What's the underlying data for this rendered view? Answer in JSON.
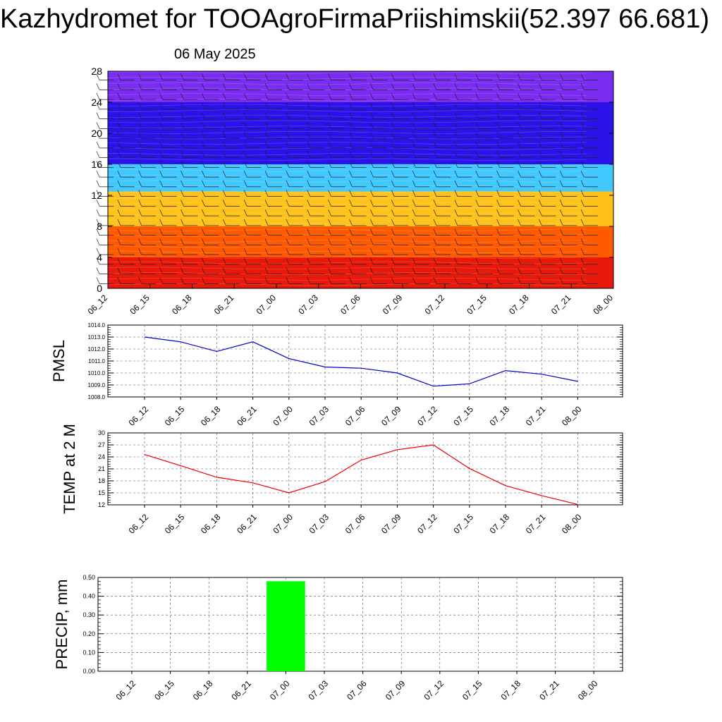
{
  "page": {
    "title": "Kazhydromet for TOOAgroFirmaPriishimskii(52.397 66.681)",
    "subtitle": "06 May 2025"
  },
  "chart_data": [
    {
      "type": "heatmap",
      "title": "",
      "xlabel": "",
      "ylabel": "",
      "x": [
        "06_12",
        "06_15",
        "06_18",
        "06_21",
        "07_00",
        "07_03",
        "07_06",
        "07_09",
        "07_12",
        "07_15",
        "07_18",
        "07_21",
        "08_00"
      ],
      "yticks": [
        0,
        4,
        8,
        12,
        16,
        20,
        24,
        28
      ],
      "ylim": [
        0,
        28
      ],
      "colorbands": [
        {
          "y": [
            0,
            4
          ],
          "color": "#e8180a"
        },
        {
          "y": [
            4,
            8
          ],
          "color": "#ff5a00"
        },
        {
          "y": [
            8,
            12.5
          ],
          "color": "#ffc21a"
        },
        {
          "y": [
            12.5,
            16
          ],
          "color": "#40c8ff"
        },
        {
          "y": [
            16,
            24
          ],
          "color": "#2a12e8"
        },
        {
          "y": [
            24,
            28
          ],
          "color": "#7a2cf0"
        }
      ],
      "wind_barbs": true
    },
    {
      "type": "line",
      "ylabel": "PMSL",
      "x": [
        "06_12",
        "06_15",
        "06_18",
        "06_21",
        "07_00",
        "07_03",
        "07_06",
        "07_09",
        "07_12",
        "07_15",
        "07_18",
        "07_21",
        "08_00"
      ],
      "series": [
        {
          "values": [
            1013.0,
            1012.6,
            1011.8,
            1012.6,
            1011.2,
            1010.5,
            1010.4,
            1010.0,
            1008.9,
            1009.1,
            1010.2,
            1009.9,
            1009.3
          ],
          "color": "#0000cc"
        }
      ],
      "ylim": [
        1008.0,
        1014.0
      ],
      "yticks": [
        "1008.0",
        "1009.0",
        "1010.0",
        "1011.0",
        "1012.0",
        "1013.0",
        "1014.0"
      ],
      "grid": true
    },
    {
      "type": "line",
      "ylabel": "TEMP at 2 M",
      "x": [
        "06_12",
        "06_15",
        "06_18",
        "06_21",
        "07_00",
        "07_03",
        "07_06",
        "07_09",
        "07_12",
        "07_15",
        "07_18",
        "07_21",
        "08_00"
      ],
      "series": [
        {
          "values": [
            24.6,
            21.8,
            18.9,
            17.5,
            15.0,
            17.8,
            23.2,
            25.8,
            27.0,
            21.1,
            16.8,
            14.3,
            12.1
          ],
          "color": "#ee0000"
        }
      ],
      "ylim": [
        12,
        30
      ],
      "yticks": [
        "12",
        "15",
        "18",
        "21",
        "24",
        "27",
        "30"
      ],
      "grid": true
    },
    {
      "type": "bar",
      "ylabel": "PRECIP, mm",
      "categories": [
        "06_12",
        "06_15",
        "06_18",
        "06_21",
        "07_00",
        "07_03",
        "07_06",
        "07_09",
        "07_12",
        "07_15",
        "07_18",
        "07_21",
        "08_00"
      ],
      "values": [
        0,
        0,
        0,
        0,
        0.48,
        0,
        0,
        0,
        0,
        0,
        0,
        0,
        0
      ],
      "color": "#00ff00",
      "ylim": [
        0,
        0.5
      ],
      "yticks": [
        "0.00",
        "0.10",
        "0.20",
        "0.30",
        "0.40",
        "0.50"
      ],
      "grid": true
    }
  ]
}
